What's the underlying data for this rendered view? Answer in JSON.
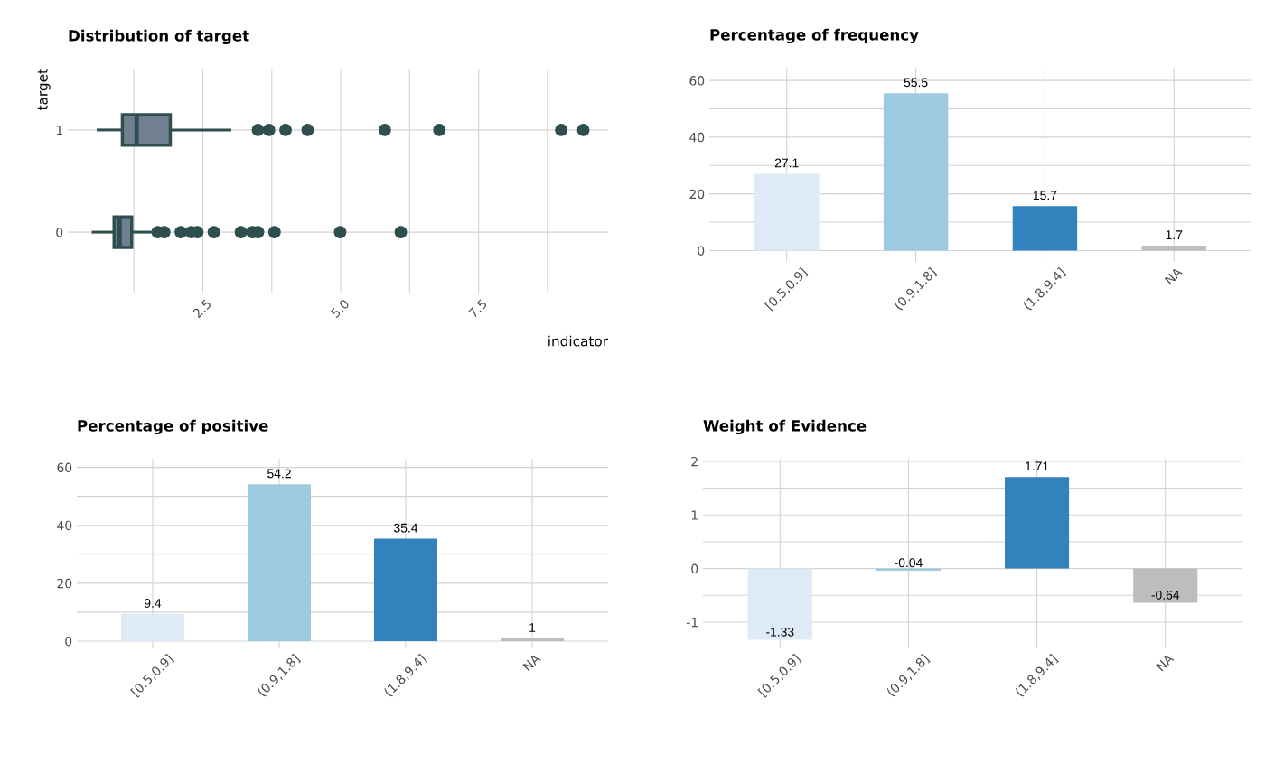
{
  "chart_data": [
    {
      "type": "box",
      "title": "Distribution of target",
      "xlabel": "indicator",
      "ylabel": "target",
      "orientation": "horizontal",
      "categories": [
        "1",
        "0"
      ],
      "boxes": [
        {
          "low": 0.6,
          "q1": 1.04,
          "median": 1.3,
          "q3": 1.91,
          "high": 2.99,
          "outliers": [
            3.5,
            3.7,
            4.0,
            4.4,
            5.8,
            6.79,
            9.0,
            9.4
          ]
        },
        {
          "low": 0.51,
          "q1": 0.89,
          "median": 0.99,
          "q3": 1.21,
          "high": 1.62,
          "outliers": [
            1.68,
            1.8,
            2.1,
            2.29,
            2.4,
            2.7,
            3.19,
            3.4,
            3.5,
            3.8,
            4.99,
            6.09
          ]
        }
      ],
      "color": "#708090",
      "xlim": [
        0.05,
        9.85
      ],
      "xticks": [
        {
          "value": 2.5,
          "label": "2.5"
        },
        {
          "value": 5.0,
          "label": "5.0"
        },
        {
          "value": 7.5,
          "label": "7.5"
        }
      ],
      "grid": true
    },
    {
      "type": "bar",
      "title": "Percentage of frequency",
      "categories": [
        "[0.5,0.9]",
        "(0.9,1.8]",
        "(1.8,9.4]",
        "NA"
      ],
      "values": [
        27.1,
        55.5,
        15.7,
        1.7
      ],
      "colors": [
        "#deebf7",
        "#9ecae1",
        "#3182bd",
        "#bdbdbd"
      ],
      "ylim": [
        -4,
        64.5
      ],
      "yticks": [
        0,
        20,
        40,
        60
      ],
      "data_labels": true,
      "grid": true
    },
    {
      "type": "bar",
      "title": "Percentage of positive",
      "categories": [
        "[0.5,0.9]",
        "(0.9,1.8]",
        "(1.8,9.4]",
        "NA"
      ],
      "values": [
        9.4,
        54.2,
        35.4,
        1
      ],
      "colors": [
        "#deebf7",
        "#9ecae1",
        "#3182bd",
        "#bdbdbd"
      ],
      "ylim": [
        -2.5,
        63
      ],
      "yticks": [
        0,
        20,
        40,
        60
      ],
      "data_labels": true,
      "grid": true
    },
    {
      "type": "bar",
      "title": "Weight of Evidence",
      "categories": [
        "[0.5,0.9]",
        "(0.9,1.8]",
        "(1.8,9.4]",
        "NA"
      ],
      "values": [
        -1.33,
        -0.04,
        1.71,
        -0.64
      ],
      "colors": [
        "#deebf7",
        "#9ecae1",
        "#3182bd",
        "#bdbdbd"
      ],
      "ylim": [
        -1.49,
        2.05
      ],
      "yticks": [
        {
          "value": -1,
          "label": "-1"
        },
        0,
        1,
        2
      ],
      "data_labels": true,
      "grid": true
    }
  ]
}
